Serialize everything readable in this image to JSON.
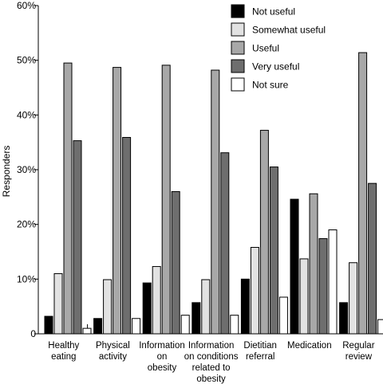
{
  "chart_data": {
    "type": "bar",
    "title": "",
    "xlabel": "",
    "ylabel": "Responders",
    "ylim": [
      0,
      60
    ],
    "yticks": [
      "0",
      "10%",
      "20%",
      "30%",
      "40%",
      "50%",
      "60%"
    ],
    "ytick_values": [
      0,
      10,
      20,
      30,
      40,
      50,
      60
    ],
    "grid": false,
    "legend_position": "top-right",
    "categories": [
      [
        "Healthy",
        "eating"
      ],
      [
        "Physical",
        "activity"
      ],
      [
        "Information",
        "on",
        "obesity"
      ],
      [
        "Information",
        "on conditions",
        "related to",
        "obesity"
      ],
      [
        "Dietitian",
        "referral"
      ],
      [
        "Medication"
      ],
      [
        "Regular",
        "review"
      ]
    ],
    "series": [
      {
        "name": "Not useful",
        "color": "#000000",
        "values": [
          3.2,
          2.8,
          9.3,
          5.7,
          10.0,
          24.6,
          5.7
        ]
      },
      {
        "name": "Somewhat useful",
        "color": "#e2e2e2",
        "values": [
          11.0,
          9.9,
          12.3,
          9.9,
          15.8,
          13.7,
          13.0
        ]
      },
      {
        "name": "Useful",
        "color": "#a8a8a8",
        "values": [
          49.5,
          48.7,
          49.1,
          48.2,
          37.2,
          25.6,
          51.4
        ]
      },
      {
        "name": "Very useful",
        "color": "#6e6e6e",
        "values": [
          35.3,
          35.9,
          26.0,
          33.1,
          30.5,
          17.4,
          27.5
        ]
      },
      {
        "name": "Not sure",
        "color": "#ffffff",
        "values": [
          1.0,
          2.8,
          3.4,
          3.4,
          6.7,
          19.0,
          2.6
        ]
      }
    ]
  }
}
